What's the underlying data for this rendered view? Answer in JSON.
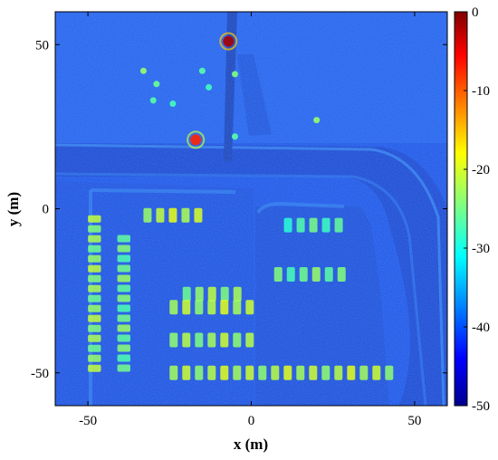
{
  "chart_data": {
    "type": "heatmap",
    "title": "",
    "xlabel": "x (m)",
    "ylabel": "y (m)",
    "xlim": [
      -60,
      60
    ],
    "ylim": [
      -60,
      60
    ],
    "x_ticks": [
      -50,
      0,
      50
    ],
    "y_ticks": [
      50,
      0,
      -50
    ],
    "x_tick_labels": [
      "-50",
      "0",
      "50"
    ],
    "y_tick_labels": [
      "50",
      "0",
      "-50"
    ],
    "colorbar": {
      "range": [
        -50,
        0
      ],
      "ticks": [
        0,
        -10,
        -20,
        -30,
        -40,
        -50
      ],
      "tick_labels": [
        "0",
        "-10",
        "-20",
        "-30",
        "-40",
        "-50"
      ],
      "colormap": "jet"
    },
    "background_level": -40,
    "features": [
      {
        "x": -7,
        "y": 51,
        "value": -2
      },
      {
        "x": -17,
        "y": 21,
        "value": -8
      },
      {
        "x": -33,
        "y": 42,
        "value": -24
      },
      {
        "x": -29,
        "y": 38,
        "value": -26
      },
      {
        "x": -15,
        "y": 42,
        "value": -27
      },
      {
        "x": -13,
        "y": 37,
        "value": -28
      },
      {
        "x": -5,
        "y": 41,
        "value": -25
      },
      {
        "x": 20,
        "y": 27,
        "value": -24
      },
      {
        "x": -5,
        "y": 22,
        "value": -27
      },
      {
        "x": -30,
        "y": 33,
        "value": -27
      },
      {
        "x": -24,
        "y": 32,
        "value": -28
      }
    ],
    "car_rows": [
      {
        "x_start": -50,
        "x_end": -46,
        "y_start": -50,
        "y_end": -2,
        "value": -24
      },
      {
        "x_start": -41,
        "x_end": -37,
        "y_start": -48,
        "y_end": -8,
        "value": -26
      },
      {
        "x_start": -33,
        "x_end": -15,
        "y_start": -2,
        "y_end": -2,
        "value": -22
      },
      {
        "x_start": -21,
        "x_end": -3,
        "y_start": -26,
        "y_end": -26,
        "value": -24
      },
      {
        "x_start": -25,
        "x_end": 0,
        "y_start": -30,
        "y_end": -30,
        "value": -23
      },
      {
        "x_start": 7,
        "x_end": 29,
        "y_start": -20,
        "y_end": -20,
        "value": -26
      },
      {
        "x_start": -25,
        "x_end": 0,
        "y_start": -40,
        "y_end": -40,
        "value": -24
      },
      {
        "x_start": -25,
        "x_end": 42,
        "y_start": -50,
        "y_end": -50,
        "value": -23
      },
      {
        "x_start": 10,
        "x_end": 28,
        "y_start": -5,
        "y_end": -5,
        "value": -28
      }
    ]
  }
}
